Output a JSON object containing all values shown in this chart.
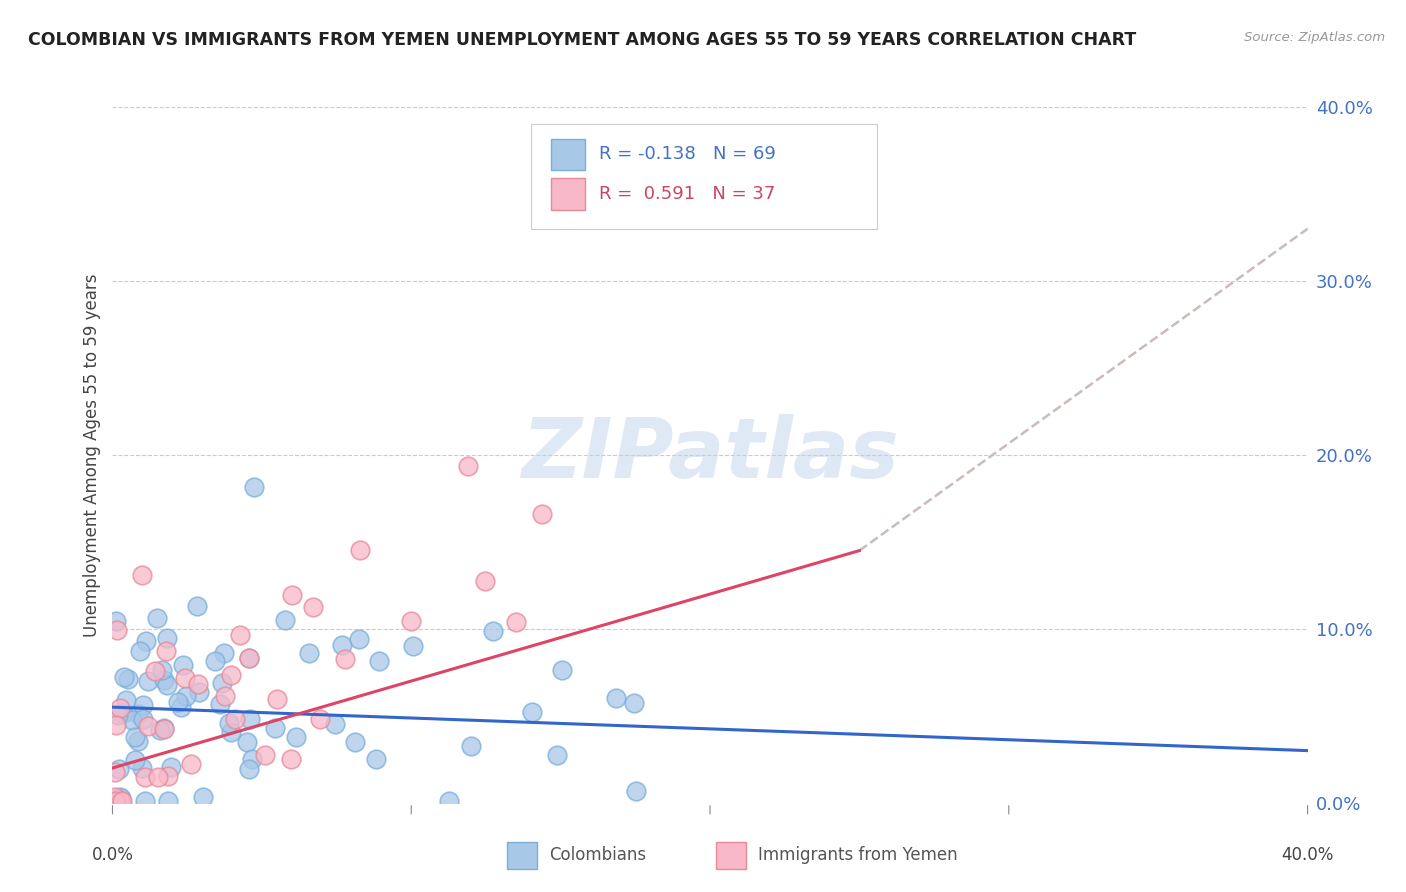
{
  "title": "COLOMBIAN VS IMMIGRANTS FROM YEMEN UNEMPLOYMENT AMONG AGES 55 TO 59 YEARS CORRELATION CHART",
  "source": "Source: ZipAtlas.com",
  "ylabel": "Unemployment Among Ages 55 to 59 years",
  "watermark_zip": "ZIP",
  "watermark_atlas": "atlas",
  "col_R": -0.138,
  "col_N": 69,
  "yem_R": 0.591,
  "yem_N": 37,
  "col_scatter_face": "#a8c8e8",
  "col_scatter_edge": "#7aaedb",
  "col_line_color": "#3366cc",
  "yem_scatter_face": "#f8b8c8",
  "yem_scatter_edge": "#e88898",
  "yem_line_color": "#dd4466",
  "yem_dash_color": "#ccbbbb",
  "legend_border": "#cccccc",
  "legend_bg": "#ffffff",
  "col_legend_face": "#a8c8e8",
  "col_legend_edge": "#7aaedb",
  "yem_legend_face": "#f8b8c8",
  "yem_legend_edge": "#e88898",
  "col_text_color": "#4472c4",
  "yem_text_color": "#cc4466",
  "right_tick_color": "#4472c4",
  "grid_color": "#cccccc",
  "bg_color": "#ffffff",
  "title_color": "#222222",
  "source_color": "#999999",
  "ylabel_color": "#444444",
  "xtick_label_color": "#444444",
  "bottom_legend_color": "#555555",
  "xlim": [
    0.0,
    0.4
  ],
  "ylim": [
    0.0,
    0.4
  ],
  "ytick_vals": [
    0.0,
    0.1,
    0.2,
    0.3,
    0.4
  ],
  "ytick_labels": [
    "0.0%",
    "10.0%",
    "20.0%",
    "30.0%",
    "40.0%"
  ],
  "xtick_vals": [
    0.0,
    0.1,
    0.2,
    0.3,
    0.4
  ],
  "col_legend_label": "R = -0.138   N = 69",
  "yem_legend_label": "R =  0.591   N = 37",
  "bottom_label_col": "Colombians",
  "bottom_label_yem": "Immigrants from Yemen"
}
